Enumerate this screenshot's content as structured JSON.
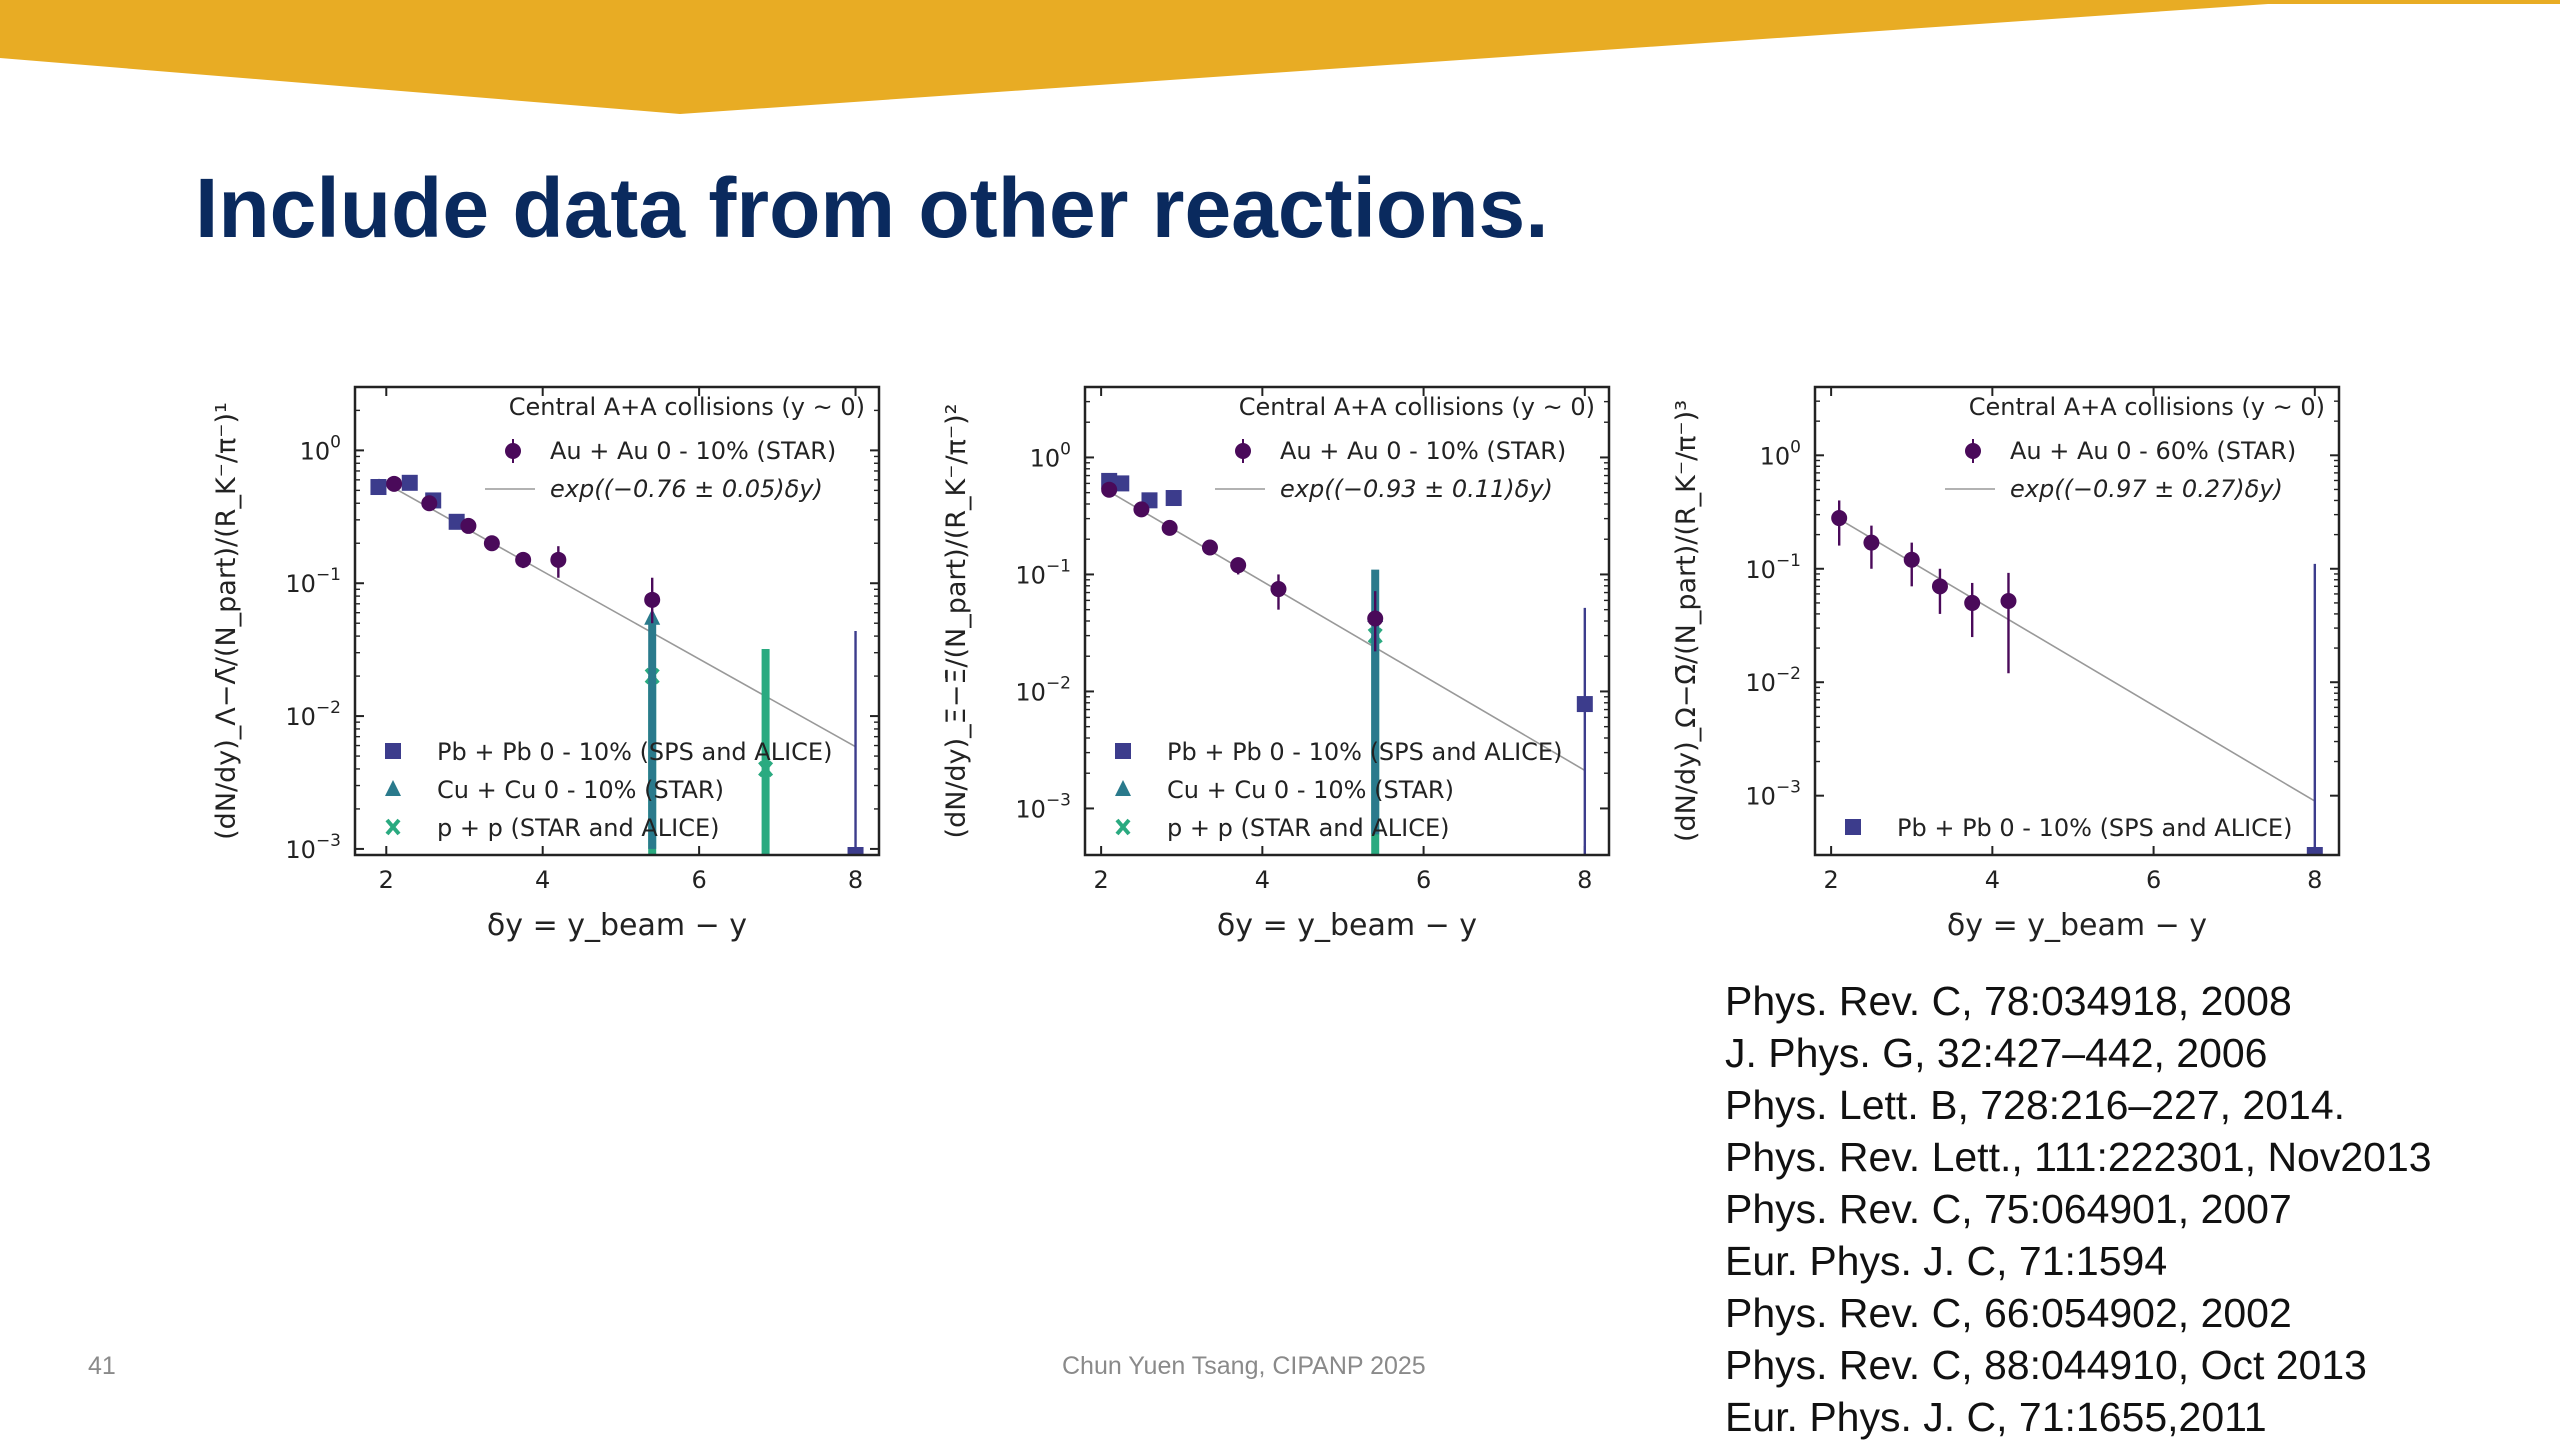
{
  "slide": {
    "title": "Include data from other reactions.",
    "page_number": "41",
    "footer": "Chun Yuen Tsang, CIPANP 2025",
    "banner_color": "#e8ac24",
    "title_color": "#0a2a5e"
  },
  "references": [
    "Phys. Rev. C, 78:034918, 2008",
    "J. Phys. G, 32:427–442, 2006",
    "Phys. Lett. B, 728:216–227, 2014.",
    "Phys. Rev. Lett., 111:222301, Nov2013",
    "Phys. Rev. C, 75:064901, 2007",
    "Eur. Phys. J. C, 71:1594",
    "Phys. Rev. C, 66:054902, 2002",
    "Phys. Rev. C, 88:044910, Oct 2013",
    "Eur. Phys. J. C, 71:1655,2011"
  ],
  "colors": {
    "au": "#4a0a5a",
    "pb": "#3c3c8c",
    "cu": "#2a7a8c",
    "pp": "#2aaa80",
    "fit": "#999999"
  },
  "chart_data": [
    {
      "type": "scatter",
      "name": "lambda",
      "annotation": "Central A+A collisions (y ~ 0)",
      "xlabel": "δy = y_beam − y",
      "ylabel": "(dN/dy)_Λ−Λ̄/(N_part)/(R_K⁻/π⁻)¹",
      "xlim": [
        1.6,
        8.3
      ],
      "ylog": true,
      "ylim": [
        0.0009,
        3.0
      ],
      "xticks": [
        2,
        4,
        6,
        8
      ],
      "xticklabels": [
        "2",
        "4",
        "6",
        "8"
      ],
      "yticks": [
        1,
        0.1,
        0.01,
        0.001
      ],
      "yticklabels": [
        [
          "10",
          "0"
        ],
        [
          "10",
          "−1"
        ],
        [
          "10",
          "−2"
        ],
        [
          "10",
          "−3"
        ]
      ],
      "fit": {
        "label": "exp((−0.76 ± 0.05)δy)",
        "slope": -0.76,
        "norm": 2.57
      },
      "series": [
        {
          "key": "au",
          "name": "Au + Au 0 - 10% (STAR)",
          "marker": "circle",
          "x": [
            2.1,
            2.55,
            3.05,
            3.35,
            3.75,
            4.2,
            5.4
          ],
          "y": [
            0.56,
            0.4,
            0.27,
            0.2,
            0.15,
            0.15,
            0.075
          ],
          "err_lo": [
            0.03,
            0.03,
            0.02,
            0.02,
            0.02,
            0.04,
            0.025
          ],
          "err_hi": [
            0.03,
            0.03,
            0.02,
            0.02,
            0.02,
            0.04,
            0.035
          ]
        },
        {
          "key": "pb",
          "name": "Pb + Pb 0 - 10% (SPS and ALICE)",
          "marker": "square",
          "x": [
            1.9,
            2.3,
            2.6,
            2.9,
            8.0
          ],
          "y": [
            0.53,
            0.57,
            0.42,
            0.29,
            0.0007
          ],
          "err_lo": [
            0.02,
            0.02,
            0.02,
            0.02,
            0.0
          ],
          "err_hi": [
            0.02,
            0.02,
            0.02,
            0.02,
            0.043
          ]
        },
        {
          "key": "cu",
          "name": "Cu + Cu 0 - 10% (STAR)",
          "marker": "triangle",
          "x": [
            5.4
          ],
          "y": [
            0.055
          ],
          "err_lo": [
            0.054
          ],
          "err_hi": [
            0.0
          ]
        },
        {
          "key": "pp",
          "name": "p + p (STAR and ALICE)",
          "marker": "cross",
          "x": [
            5.4,
            6.85
          ],
          "y": [
            0.02,
            0.004
          ],
          "err_lo": [
            0.0195,
            0.0039
          ],
          "err_hi": [
            0.0,
            0.028
          ]
        }
      ]
    },
    {
      "type": "scatter",
      "name": "xi",
      "annotation": "Central A+A collisions (y ~ 0)",
      "xlabel": "δy = y_beam − y",
      "ylabel": "(dN/dy)_Ξ−Ξ̄/(N_part)/(R_K⁻/π⁻)²",
      "xlim": [
        1.8,
        8.3
      ],
      "ylog": true,
      "ylim": [
        0.0004,
        4.0
      ],
      "xticks": [
        2,
        4,
        6,
        8
      ],
      "xticklabels": [
        "2",
        "4",
        "6",
        "8"
      ],
      "yticks": [
        1,
        0.1,
        0.01,
        0.001
      ],
      "yticklabels": [
        [
          "10",
          "0"
        ],
        [
          "10",
          "−1"
        ],
        [
          "10",
          "−2"
        ],
        [
          "10",
          "−3"
        ]
      ],
      "fit": {
        "label": "exp((−0.93 ± 0.11)δy)",
        "slope": -0.93,
        "norm": 3.6
      },
      "series": [
        {
          "key": "au",
          "name": "Au + Au 0 - 10% (STAR)",
          "marker": "circle",
          "x": [
            2.1,
            2.5,
            2.85,
            3.35,
            3.7,
            4.2,
            5.4
          ],
          "y": [
            0.53,
            0.36,
            0.25,
            0.17,
            0.12,
            0.075,
            0.042
          ],
          "err_lo": [
            0.03,
            0.03,
            0.02,
            0.02,
            0.02,
            0.025,
            0.02
          ],
          "err_hi": [
            0.03,
            0.03,
            0.02,
            0.02,
            0.02,
            0.025,
            0.03
          ]
        },
        {
          "key": "pb",
          "name": "Pb + Pb 0 - 10% (SPS and ALICE)",
          "marker": "square",
          "x": [
            2.1,
            2.25,
            2.6,
            2.9,
            8.0
          ],
          "y": [
            0.63,
            0.6,
            0.43,
            0.45,
            0.0078
          ],
          "err_lo": [
            0.03,
            0.03,
            0.02,
            0.02,
            0.0074
          ],
          "err_hi": [
            0.03,
            0.03,
            0.02,
            0.02,
            0.044
          ]
        },
        {
          "key": "cu",
          "name": "Cu + Cu 0 - 10% (STAR)",
          "marker": "triangle",
          "x": [
            5.4
          ],
          "y": [
            0.045
          ],
          "err_lo": [
            0.0444
          ],
          "err_hi": [
            0.065
          ]
        },
        {
          "key": "pp",
          "name": "p + p (STAR and ALICE)",
          "marker": "cross",
          "x": [
            5.4
          ],
          "y": [
            0.03
          ],
          "err_lo": [
            0.0296
          ],
          "err_hi": [
            0.0
          ]
        }
      ]
    },
    {
      "type": "scatter",
      "name": "omega",
      "annotation": "Central A+A collisions (y ~ 0)",
      "xlabel": "δy = y_beam − y",
      "ylabel": "(dN/dy)_Ω−Ω̄/(N_part)/(R_K⁻/π⁻)³",
      "xlim": [
        1.8,
        8.3
      ],
      "ylog": true,
      "ylim": [
        0.0003,
        4.0
      ],
      "xticks": [
        2,
        4,
        6,
        8
      ],
      "xticklabels": [
        "2",
        "4",
        "6",
        "8"
      ],
      "yticks": [
        1,
        0.1,
        0.01,
        0.001
      ],
      "yticklabels": [
        [
          "10",
          "0"
        ],
        [
          "10",
          "−1"
        ],
        [
          "10",
          "−2"
        ],
        [
          "10",
          "−3"
        ]
      ],
      "fit": {
        "label": "exp((−0.97 ± 0.27)δy)",
        "slope": -0.97,
        "norm": 2.1
      },
      "series": [
        {
          "key": "au",
          "name": "Au + Au 0 - 60% (STAR)",
          "marker": "circle",
          "x": [
            2.1,
            2.5,
            3.0,
            3.35,
            3.75,
            4.2
          ],
          "y": [
            0.28,
            0.17,
            0.12,
            0.07,
            0.05,
            0.052
          ],
          "err_lo": [
            0.12,
            0.07,
            0.05,
            0.03,
            0.025,
            0.04
          ],
          "err_hi": [
            0.12,
            0.07,
            0.05,
            0.03,
            0.025,
            0.04
          ]
        },
        {
          "key": "pb",
          "name": "Pb + Pb 0 - 10% (SPS and ALICE)",
          "marker": "square",
          "x": [
            8.0
          ],
          "y": [
            0.0003
          ],
          "err_lo": [
            0.0
          ],
          "err_hi": [
            0.11
          ]
        }
      ]
    }
  ]
}
